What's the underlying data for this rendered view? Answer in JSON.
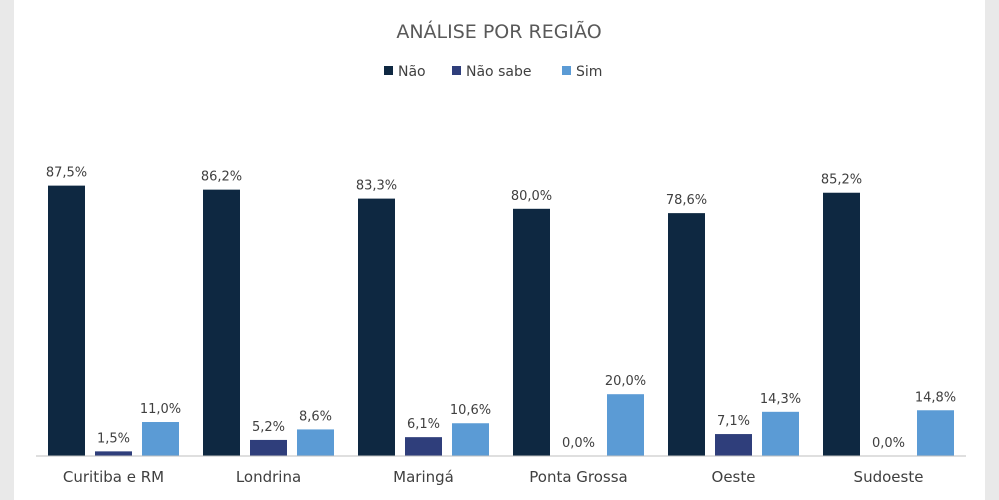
{
  "chart_data": {
    "type": "bar",
    "title": "ANÁLISE POR REGIÃO",
    "categories": [
      "Curitiba e RM",
      "Londrina",
      "Maringá",
      "Ponta Grossa",
      "Oeste",
      "Sudoeste"
    ],
    "series": [
      {
        "name": "Não",
        "color": "#0e2841",
        "values": [
          87.5,
          86.2,
          83.3,
          80.0,
          78.6,
          85.2
        ],
        "labels": [
          "87,5%",
          "86,2%",
          "83,3%",
          "80,0%",
          "78,6%",
          "85,2%"
        ]
      },
      {
        "name": "Não sabe",
        "color": "#2f3e7b",
        "values": [
          1.5,
          5.2,
          6.1,
          0.0,
          7.1,
          0.0
        ],
        "labels": [
          "1,5%",
          "5,2%",
          "6,1%",
          "0,0%",
          "7,1%",
          "0,0%"
        ]
      },
      {
        "name": "Sim",
        "color": "#5b9bd5",
        "values": [
          11.0,
          8.6,
          10.6,
          20.0,
          14.3,
          14.8
        ],
        "labels": [
          "11,0%",
          "8,6%",
          "10,6%",
          "20,0%",
          "14,3%",
          "14,8%"
        ]
      }
    ],
    "ylim": [
      0,
      100
    ],
    "legend": "top-center",
    "grid": false
  }
}
